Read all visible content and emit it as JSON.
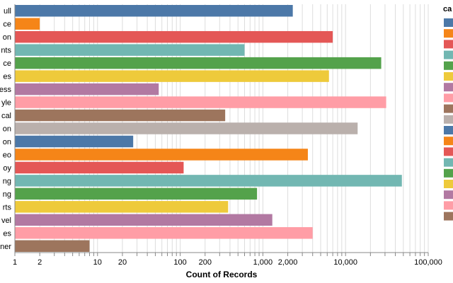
{
  "chart_data": {
    "type": "bar",
    "orientation": "horizontal",
    "xscale": "log",
    "xlim": [
      1,
      100000
    ],
    "grid": true,
    "legend_placement": "right",
    "xlabel": "Count of Records",
    "ylabel": "",
    "title": "",
    "legend_title": "ca",
    "x_tick_labels": [
      "1",
      "2",
      "10",
      "20",
      "100",
      "200",
      "1,000",
      "2,000",
      "10,000",
      "100,000"
    ],
    "x_tick_values": [
      1,
      2,
      10,
      20,
      100,
      200,
      1000,
      2000,
      10000,
      100000
    ],
    "categories": [
      "ull",
      "ce",
      "on",
      "nts",
      "ce",
      "es",
      "ess",
      "yle",
      "cal",
      "on",
      "on",
      "eo",
      "oy",
      "ng",
      "ng",
      "rts",
      "vel",
      "es",
      "ner"
    ],
    "values": [
      2300,
      2,
      7000,
      600,
      27000,
      6300,
      55,
      31000,
      350,
      14000,
      27,
      3500,
      110,
      48000,
      850,
      380,
      1300,
      4000,
      8
    ],
    "colors": [
      "#4c78a8",
      "#f58518",
      "#e45756",
      "#72b7b2",
      "#54a24b",
      "#eeca3b",
      "#b279a2",
      "#ff9da6",
      "#9d755d",
      "#bab0ac",
      "#4c78a8",
      "#f58518",
      "#e45756",
      "#72b7b2",
      "#54a24b",
      "#eeca3b",
      "#b279a2",
      "#ff9da6",
      "#9d755d"
    ]
  }
}
